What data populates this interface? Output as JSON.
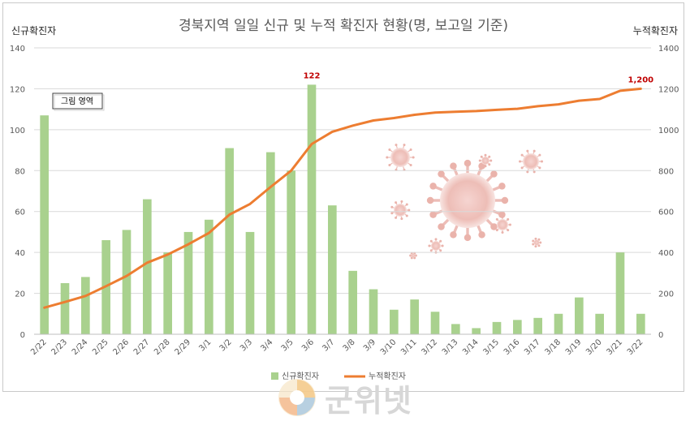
{
  "chart_data": {
    "type": "bar",
    "title": "경북지역 일일 신규 및 누적 확진자 현황(명, 보고일 기준)",
    "ylabel_left": "신규확진자",
    "ylabel_right": "누적확진자",
    "ylim_left": [
      0,
      140
    ],
    "ylim_right": [
      0,
      1400
    ],
    "yticks_left": [
      0,
      20,
      40,
      60,
      80,
      100,
      120,
      140
    ],
    "yticks_right": [
      0,
      200,
      400,
      600,
      800,
      1000,
      1200,
      1400
    ],
    "grid": true,
    "legend_position": "bottom",
    "categories": [
      "2/22",
      "2/23",
      "2/24",
      "2/25",
      "2/26",
      "2/27",
      "2/28",
      "2/29",
      "3/1",
      "3/2",
      "3/3",
      "3/4",
      "3/5",
      "3/6",
      "3/7",
      "3/8",
      "3/9",
      "3/10",
      "3/11",
      "3/12",
      "3/13",
      "3/14",
      "3/15",
      "3/16",
      "3/17",
      "3/18",
      "3/19",
      "3/20",
      "3/21",
      "3/22"
    ],
    "series": [
      {
        "name": "신규확진자",
        "type": "bar",
        "axis": "left",
        "color": "#a9d18e",
        "values": [
          107,
          25,
          28,
          46,
          51,
          66,
          40,
          50,
          56,
          91,
          50,
          89,
          80,
          122,
          63,
          31,
          22,
          12,
          17,
          11,
          5,
          3,
          6,
          7,
          8,
          10,
          18,
          10,
          40,
          10
        ]
      },
      {
        "name": "누적확진자",
        "type": "line",
        "axis": "right",
        "color": "#ed7d31",
        "values": [
          130,
          158,
          187,
          235,
          285,
          350,
          390,
          440,
          495,
          585,
          637,
          720,
          800,
          930,
          990,
          1020,
          1045,
          1057,
          1073,
          1084,
          1088,
          1091,
          1097,
          1102,
          1115,
          1124,
          1142,
          1150,
          1190,
          1200
        ]
      }
    ],
    "annotations": [
      {
        "text": "122",
        "series": "신규확진자",
        "category": "3/6"
      },
      {
        "text": "1,200",
        "series": "누적확진자",
        "category": "3/22"
      }
    ]
  },
  "tooltip": "그림 영역",
  "watermark": "군위넷",
  "colors": {
    "bar": "#a9d18e",
    "line": "#ed7d31",
    "label": "#c00000",
    "grid": "#d9d9d9"
  }
}
